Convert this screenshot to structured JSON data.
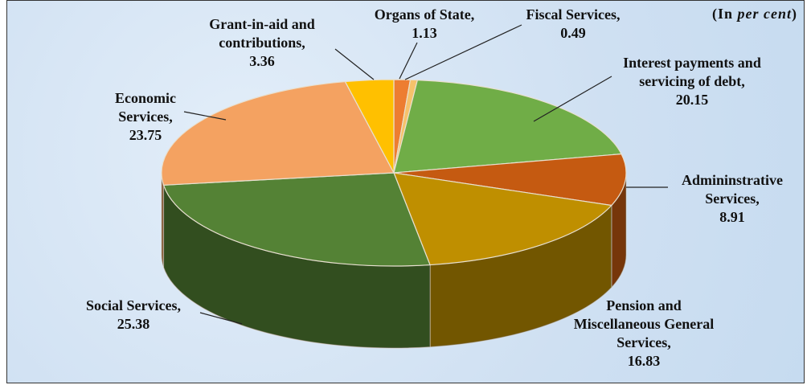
{
  "chart_data": {
    "type": "pie",
    "three_d": true,
    "note": {
      "prefix": "(In",
      "emphasis": "per cent",
      "suffix": ")"
    },
    "categories": [
      "Organs of State,",
      "Fiscal Services,",
      "Interest payments and servicing of debt,",
      "Admininstrative Services,",
      "Pension and Miscellaneous General Services,",
      "Social Services,",
      "Economic Services,",
      "Grant-in-aid and contributions,"
    ],
    "values": [
      1.13,
      0.49,
      20.15,
      8.91,
      16.83,
      25.38,
      23.75,
      3.36
    ],
    "colors": [
      "#ed7d31",
      "#f6c26b",
      "#70ad47",
      "#c55a11",
      "#bf8f00",
      "#548235",
      "#f4a261",
      "#ffc000"
    ]
  }
}
